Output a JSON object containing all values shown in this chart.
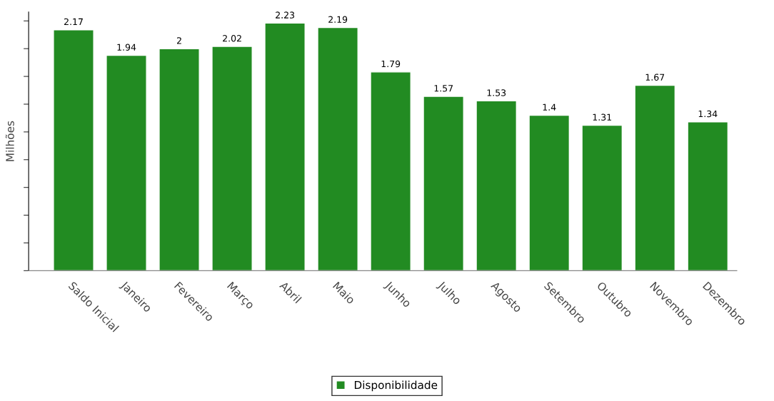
{
  "chart_data": {
    "type": "bar",
    "ylabel": "Milhões",
    "categories": [
      "Saldo Inicial",
      "Janeiro",
      "Fevereiro",
      "Março",
      "Abril",
      "Maio",
      "Junho",
      "Julho",
      "Agosto",
      "Setembro",
      "Outubro",
      "Novembro",
      "Dezembro"
    ],
    "series": [
      {
        "name": "Disponibilidade",
        "color": "#228b22",
        "values": [
          2.17,
          1.94,
          2,
          2.02,
          2.23,
          2.19,
          1.79,
          1.57,
          1.53,
          1.4,
          1.31,
          1.67,
          1.34
        ]
      }
    ],
    "ylim": [
      0,
      2.33
    ],
    "yticks": [
      {
        "value": 0,
        "label": null
      },
      {
        "value": 0.25,
        "label": null
      },
      {
        "value": 0.5,
        "label": null
      },
      {
        "value": 0.75,
        "label": null
      },
      {
        "value": 1,
        "label": null
      },
      {
        "value": 1.25,
        "label": null
      },
      {
        "value": 1.5,
        "label": null
      },
      {
        "value": 1.75,
        "label": null
      },
      {
        "value": 2,
        "label": null
      },
      {
        "value": 2.25,
        "label": null
      }
    ],
    "tick_labels": "x",
    "data_labels": true,
    "grid": false,
    "legend": "bottom"
  }
}
